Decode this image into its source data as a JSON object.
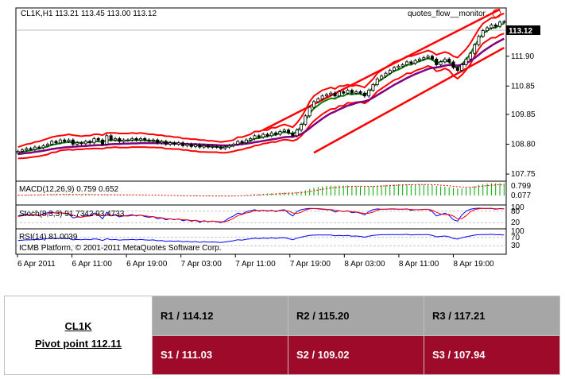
{
  "chart_data": {
    "type": "candlestick",
    "header": "CL1K,H1  113.21 113.45 113.00 113.12",
    "indicator_label": "quotes_flow__monitor",
    "current_price": "113.12",
    "copyright": "ICMB Platform, © 2001-2011 MetaQuotes Software Corp.",
    "price_ylim": [
      107.5,
      113.6
    ],
    "price_ticks": [
      "111.90",
      "110.85",
      "109.85",
      "108.80",
      "107.75"
    ],
    "x_ticks": [
      "6 Apr 2011",
      "6 Apr 11:00",
      "6 Apr 19:00",
      "7 Apr 03:00",
      "7 Apr 11:00",
      "7 Apr 19:00",
      "8 Apr 03:00",
      "8 Apr 11:00",
      "8 Apr 19:00"
    ],
    "close": [
      108.55,
      108.6,
      108.65,
      108.62,
      108.7,
      108.68,
      108.75,
      108.8,
      108.9,
      108.85,
      108.95,
      108.9,
      108.95,
      108.8,
      108.85,
      108.82,
      108.9,
      108.85,
      109.0,
      108.95,
      108.8,
      109.1,
      108.95,
      109.0,
      108.9,
      108.95,
      108.95,
      109.0,
      108.95,
      109.0,
      108.95,
      108.92,
      108.95,
      108.85,
      108.9,
      108.8,
      108.85,
      108.8,
      108.85,
      108.75,
      108.8,
      108.72,
      108.78,
      108.7,
      108.75,
      108.7,
      108.72,
      108.7,
      108.65,
      108.7,
      108.75,
      108.8,
      108.9,
      108.85,
      108.95,
      109.0,
      109.1,
      109.05,
      109.15,
      109.1,
      109.2,
      109.15,
      109.25,
      109.3,
      109.2,
      109.1,
      109.3,
      109.5,
      109.8,
      110.1,
      110.3,
      110.4,
      110.5,
      110.55,
      110.6,
      110.5,
      110.65,
      110.6,
      110.7,
      110.6,
      110.65,
      110.6,
      110.5,
      110.7,
      110.9,
      111.1,
      111.2,
      111.3,
      111.4,
      111.5,
      111.55,
      111.6,
      111.7,
      111.65,
      111.75,
      111.8,
      111.85,
      111.9,
      111.8,
      111.6,
      111.7,
      111.8,
      111.7,
      111.5,
      111.4,
      111.6,
      111.8,
      112.0,
      112.3,
      112.6,
      112.8,
      112.9,
      113.0,
      112.95,
      113.1,
      113.12
    ],
    "bb_upper": [
      108.7,
      108.75,
      108.8,
      108.82,
      108.88,
      108.9,
      108.95,
      109.0,
      109.05,
      109.08,
      109.1,
      109.12,
      109.15,
      109.12,
      109.1,
      109.08,
      109.1,
      109.1,
      109.15,
      109.15,
      109.12,
      109.2,
      109.2,
      109.2,
      109.18,
      109.18,
      109.18,
      109.2,
      109.18,
      109.2,
      109.18,
      109.15,
      109.15,
      109.12,
      109.12,
      109.08,
      109.08,
      109.05,
      109.05,
      109.0,
      109.0,
      108.98,
      108.98,
      108.95,
      108.95,
      108.92,
      108.92,
      108.9,
      108.88,
      108.9,
      108.92,
      108.95,
      109.05,
      109.05,
      109.1,
      109.15,
      109.25,
      109.25,
      109.3,
      109.3,
      109.38,
      109.38,
      109.45,
      109.5,
      109.45,
      109.4,
      109.55,
      109.75,
      110.0,
      110.3,
      110.5,
      110.6,
      110.7,
      110.75,
      110.8,
      110.75,
      110.85,
      110.85,
      110.9,
      110.85,
      110.88,
      110.85,
      110.8,
      110.95,
      111.1,
      111.3,
      111.4,
      111.5,
      111.6,
      111.7,
      111.75,
      111.8,
      111.9,
      111.9,
      111.95,
      112.0,
      112.05,
      112.1,
      112.05,
      111.95,
      112.0,
      112.05,
      112.0,
      111.9,
      111.85,
      112.0,
      112.15,
      112.35,
      112.6,
      112.85,
      113.05,
      113.15,
      113.25,
      113.25,
      113.35,
      113.4
    ],
    "bb_middle": [
      108.5,
      108.53,
      108.56,
      108.58,
      108.62,
      108.64,
      108.68,
      108.72,
      108.78,
      108.8,
      108.84,
      108.86,
      108.88,
      108.86,
      108.86,
      108.85,
      108.87,
      108.87,
      108.9,
      108.9,
      108.88,
      108.94,
      108.94,
      108.95,
      108.93,
      108.93,
      108.93,
      108.95,
      108.94,
      108.95,
      108.94,
      108.92,
      108.92,
      108.9,
      108.9,
      108.86,
      108.86,
      108.84,
      108.84,
      108.8,
      108.8,
      108.77,
      108.77,
      108.74,
      108.74,
      108.72,
      108.72,
      108.71,
      108.69,
      108.7,
      108.72,
      108.75,
      108.82,
      108.83,
      108.88,
      108.92,
      109.0,
      109.01,
      109.06,
      109.07,
      109.13,
      109.13,
      109.19,
      109.23,
      109.2,
      109.16,
      109.26,
      109.42,
      109.63,
      109.88,
      110.06,
      110.17,
      110.28,
      110.35,
      110.42,
      110.4,
      110.5,
      110.5,
      110.58,
      110.55,
      110.58,
      110.57,
      110.52,
      110.64,
      110.8,
      110.98,
      111.08,
      111.18,
      111.28,
      111.38,
      111.43,
      111.5,
      111.6,
      111.6,
      111.67,
      111.72,
      111.77,
      111.83,
      111.78,
      111.66,
      111.7,
      111.76,
      111.7,
      111.56,
      111.48,
      111.62,
      111.78,
      111.98,
      112.25,
      112.5,
      112.7,
      112.8,
      112.9,
      112.9,
      113.0,
      113.05
    ],
    "bb_lower": [
      108.3,
      108.31,
      108.32,
      108.34,
      108.36,
      108.38,
      108.41,
      108.44,
      108.51,
      108.52,
      108.58,
      108.6,
      108.61,
      108.6,
      108.62,
      108.62,
      108.64,
      108.64,
      108.65,
      108.65,
      108.64,
      108.68,
      108.68,
      108.7,
      108.68,
      108.68,
      108.68,
      108.7,
      108.7,
      108.7,
      108.7,
      108.69,
      108.69,
      108.68,
      108.68,
      108.64,
      108.64,
      108.63,
      108.63,
      108.6,
      108.6,
      108.56,
      108.56,
      108.53,
      108.53,
      108.52,
      108.52,
      108.52,
      108.5,
      108.5,
      108.52,
      108.55,
      108.59,
      108.61,
      108.66,
      108.69,
      108.75,
      108.77,
      108.82,
      108.84,
      108.88,
      108.88,
      108.93,
      108.96,
      108.95,
      108.92,
      108.97,
      109.09,
      109.26,
      109.46,
      109.62,
      109.74,
      109.86,
      109.95,
      110.04,
      110.05,
      110.15,
      110.15,
      110.26,
      110.25,
      110.28,
      110.29,
      110.24,
      110.33,
      110.5,
      110.66,
      110.76,
      110.86,
      110.96,
      111.06,
      111.11,
      111.2,
      111.3,
      111.3,
      111.39,
      111.44,
      111.49,
      111.56,
      111.51,
      111.37,
      111.4,
      111.47,
      111.4,
      111.22,
      111.11,
      111.24,
      111.41,
      111.61,
      111.9,
      112.15,
      112.35,
      112.45,
      112.55,
      112.55,
      112.65,
      112.7
    ],
    "ma": [
      108.45,
      108.47,
      108.49,
      108.5,
      108.53,
      108.55,
      108.57,
      108.6,
      108.63,
      108.65,
      108.67,
      108.69,
      108.7,
      108.71,
      108.72,
      108.73,
      108.74,
      108.75,
      108.76,
      108.77,
      108.77,
      108.79,
      108.8,
      108.81,
      108.81,
      108.82,
      108.82,
      108.83,
      108.83,
      108.84,
      108.84,
      108.84,
      108.84,
      108.84,
      108.84,
      108.83,
      108.83,
      108.82,
      108.82,
      108.81,
      108.81,
      108.8,
      108.8,
      108.79,
      108.79,
      108.78,
      108.78,
      108.77,
      108.76,
      108.76,
      108.76,
      108.77,
      108.79,
      108.8,
      108.82,
      108.84,
      108.87,
      108.89,
      108.92,
      108.94,
      108.97,
      108.99,
      109.02,
      109.05,
      109.06,
      109.06,
      109.1,
      109.16,
      109.25,
      109.36,
      109.48,
      109.59,
      109.7,
      109.8,
      109.89,
      109.95,
      110.03,
      110.09,
      110.16,
      110.2,
      110.25,
      110.29,
      110.31,
      110.36,
      110.44,
      110.53,
      110.62,
      110.71,
      110.8,
      110.89,
      110.97,
      111.05,
      111.13,
      111.2,
      111.27,
      111.33,
      111.39,
      111.45,
      111.49,
      111.5,
      111.53,
      111.57,
      111.59,
      111.58,
      111.57,
      111.6,
      111.65,
      111.73,
      111.83,
      111.95,
      112.07,
      112.17,
      112.27,
      112.36,
      112.44,
      112.52
    ],
    "channel_upper": {
      "start_index": 58,
      "start_price": 109.3,
      "end_index": 114,
      "end_price": 113.55
    },
    "channel_lower": {
      "start_index": 70,
      "start_price": 108.5,
      "end_index": 115,
      "end_price": 112.2
    },
    "macd": {
      "label": "MACD(12,26,9) 0.759 0.652",
      "ticks": [
        "0.799",
        "0.077"
      ],
      "ylim": [
        -0.6,
        0.9
      ],
      "values": [
        0.02,
        0.03,
        0.04,
        0.04,
        0.05,
        0.05,
        0.06,
        0.06,
        0.07,
        0.07,
        0.07,
        0.07,
        0.07,
        0.06,
        0.06,
        0.05,
        0.05,
        0.05,
        0.05,
        0.05,
        0.04,
        0.05,
        0.04,
        0.04,
        0.03,
        0.03,
        0.03,
        0.03,
        0.02,
        0.02,
        0.02,
        0.01,
        0.01,
        0.0,
        0.0,
        -0.01,
        -0.01,
        -0.02,
        -0.02,
        -0.03,
        -0.03,
        -0.03,
        -0.04,
        -0.04,
        -0.04,
        -0.04,
        -0.04,
        -0.04,
        -0.05,
        -0.04,
        -0.03,
        -0.02,
        0.0,
        0.01,
        0.03,
        0.05,
        0.08,
        0.09,
        0.11,
        0.12,
        0.14,
        0.15,
        0.17,
        0.19,
        0.19,
        0.18,
        0.21,
        0.26,
        0.33,
        0.41,
        0.48,
        0.53,
        0.57,
        0.6,
        0.62,
        0.61,
        0.63,
        0.62,
        0.63,
        0.61,
        0.6,
        0.58,
        0.55,
        0.56,
        0.58,
        0.62,
        0.64,
        0.66,
        0.68,
        0.7,
        0.7,
        0.7,
        0.71,
        0.7,
        0.7,
        0.7,
        0.69,
        0.69,
        0.66,
        0.6,
        0.57,
        0.55,
        0.52,
        0.47,
        0.43,
        0.44,
        0.47,
        0.52,
        0.59,
        0.66,
        0.71,
        0.74,
        0.76,
        0.76,
        0.77,
        0.76
      ],
      "signal": [
        0.01,
        0.02,
        0.02,
        0.03,
        0.03,
        0.04,
        0.04,
        0.05,
        0.05,
        0.06,
        0.06,
        0.06,
        0.06,
        0.06,
        0.06,
        0.06,
        0.06,
        0.06,
        0.05,
        0.05,
        0.05,
        0.05,
        0.05,
        0.05,
        0.04,
        0.04,
        0.04,
        0.04,
        0.03,
        0.03,
        0.03,
        0.02,
        0.02,
        0.02,
        0.01,
        0.01,
        0.0,
        0.0,
        -0.01,
        -0.01,
        -0.02,
        -0.02,
        -0.02,
        -0.03,
        -0.03,
        -0.03,
        -0.03,
        -0.04,
        -0.04,
        -0.04,
        -0.04,
        -0.03,
        -0.03,
        -0.02,
        -0.01,
        0.0,
        0.02,
        0.03,
        0.05,
        0.06,
        0.08,
        0.09,
        0.11,
        0.12,
        0.14,
        0.15,
        0.16,
        0.18,
        0.21,
        0.25,
        0.3,
        0.34,
        0.39,
        0.43,
        0.47,
        0.5,
        0.52,
        0.54,
        0.56,
        0.57,
        0.58,
        0.58,
        0.58,
        0.57,
        0.57,
        0.58,
        0.59,
        0.6,
        0.62,
        0.63,
        0.65,
        0.66,
        0.67,
        0.68,
        0.68,
        0.69,
        0.69,
        0.69,
        0.68,
        0.67,
        0.65,
        0.63,
        0.61,
        0.58,
        0.55,
        0.53,
        0.52,
        0.52,
        0.53,
        0.56,
        0.59,
        0.62,
        0.64,
        0.66,
        0.68,
        0.65
      ]
    },
    "stoch": {
      "label": "Stoch(8,3,3) 91.7342 93.4733",
      "ticks": [
        "100",
        "80",
        "20"
      ],
      "ylim": [
        0,
        100
      ],
      "k": [
        55,
        60,
        65,
        58,
        62,
        55,
        68,
        72,
        75,
        70,
        72,
        68,
        65,
        45,
        50,
        48,
        60,
        55,
        70,
        62,
        40,
        75,
        55,
        60,
        50,
        55,
        58,
        62,
        55,
        60,
        52,
        48,
        52,
        40,
        45,
        35,
        40,
        35,
        40,
        30,
        35,
        28,
        32,
        22,
        30,
        25,
        28,
        25,
        20,
        30,
        45,
        55,
        70,
        65,
        78,
        82,
        88,
        80,
        85,
        80,
        85,
        78,
        85,
        88,
        70,
        55,
        78,
        88,
        92,
        95,
        94,
        92,
        90,
        88,
        88,
        75,
        82,
        78,
        82,
        72,
        75,
        70,
        60,
        78,
        88,
        92,
        90,
        90,
        92,
        92,
        90,
        90,
        92,
        85,
        88,
        88,
        90,
        90,
        78,
        55,
        62,
        70,
        58,
        35,
        28,
        60,
        80,
        90,
        94,
        96,
        95,
        94,
        95,
        90,
        94,
        92
      ],
      "d": [
        52,
        56,
        60,
        61,
        62,
        58,
        62,
        65,
        72,
        72,
        72,
        70,
        68,
        59,
        53,
        48,
        53,
        54,
        62,
        62,
        57,
        59,
        57,
        63,
        55,
        55,
        54,
        58,
        58,
        59,
        56,
        53,
        51,
        47,
        46,
        40,
        40,
        37,
        38,
        35,
        35,
        31,
        32,
        27,
        28,
        26,
        28,
        26,
        24,
        25,
        32,
        43,
        57,
        63,
        71,
        75,
        83,
        83,
        84,
        82,
        83,
        81,
        83,
        84,
        81,
        71,
        68,
        74,
        86,
        92,
        94,
        94,
        92,
        90,
        89,
        84,
        82,
        78,
        81,
        77,
        76,
        72,
        68,
        69,
        75,
        86,
        90,
        91,
        91,
        91,
        91,
        91,
        91,
        89,
        88,
        87,
        89,
        89,
        86,
        74,
        65,
        62,
        63,
        54,
        40,
        41,
        56,
        77,
        88,
        93,
        95,
        95,
        95,
        93,
        93,
        93
      ]
    },
    "rsi": {
      "label": "RSI(14) 81.0039",
      "ticks": [
        "100",
        "70",
        "30"
      ],
      "ylim": [
        0,
        100
      ],
      "values": [
        55,
        57,
        59,
        58,
        60,
        59,
        62,
        64,
        66,
        64,
        66,
        64,
        65,
        58,
        60,
        59,
        61,
        59,
        63,
        61,
        55,
        64,
        59,
        60,
        57,
        59,
        59,
        60,
        58,
        60,
        58,
        57,
        58,
        54,
        55,
        51,
        53,
        51,
        53,
        49,
        51,
        48,
        50,
        46,
        49,
        47,
        48,
        47,
        45,
        48,
        51,
        54,
        59,
        57,
        61,
        63,
        66,
        64,
        67,
        65,
        68,
        65,
        68,
        69,
        64,
        59,
        66,
        71,
        76,
        80,
        81,
        82,
        82,
        82,
        82,
        78,
        80,
        78,
        80,
        76,
        77,
        75,
        71,
        76,
        80,
        82,
        83,
        83,
        84,
        84,
        84,
        84,
        85,
        82,
        83,
        83,
        84,
        84,
        80,
        73,
        75,
        77,
        73,
        65,
        62,
        68,
        73,
        77,
        81,
        83,
        84,
        84,
        85,
        83,
        84,
        81
      ]
    }
  },
  "table": {
    "symbol": "CL1K",
    "pivot": "Pivot point 112.11",
    "r1": "R1 / 114.12",
    "r2": "R2  / 115.20",
    "r3": "R3 / 117.21",
    "s1": "S1 / 111.03",
    "s2": "S2 /  109.02",
    "s3": "S3 /  107.94"
  },
  "colors": {
    "bull_candle": "#ffffff",
    "bear_candle": "#000000",
    "bb_upper": "#ff0000",
    "bb_middle": "#008000",
    "bb_lower": "#ff0000",
    "ma": "#800080",
    "channel": "#ff0000",
    "macd_hist": "#00aa00",
    "macd_signal": "#ff0000",
    "stoch_k": "#0000ff",
    "stoch_d": "#ff0000",
    "rsi": "#0000ff",
    "r_row": "#a6a6a6",
    "s_row": "#9e0b2a"
  }
}
